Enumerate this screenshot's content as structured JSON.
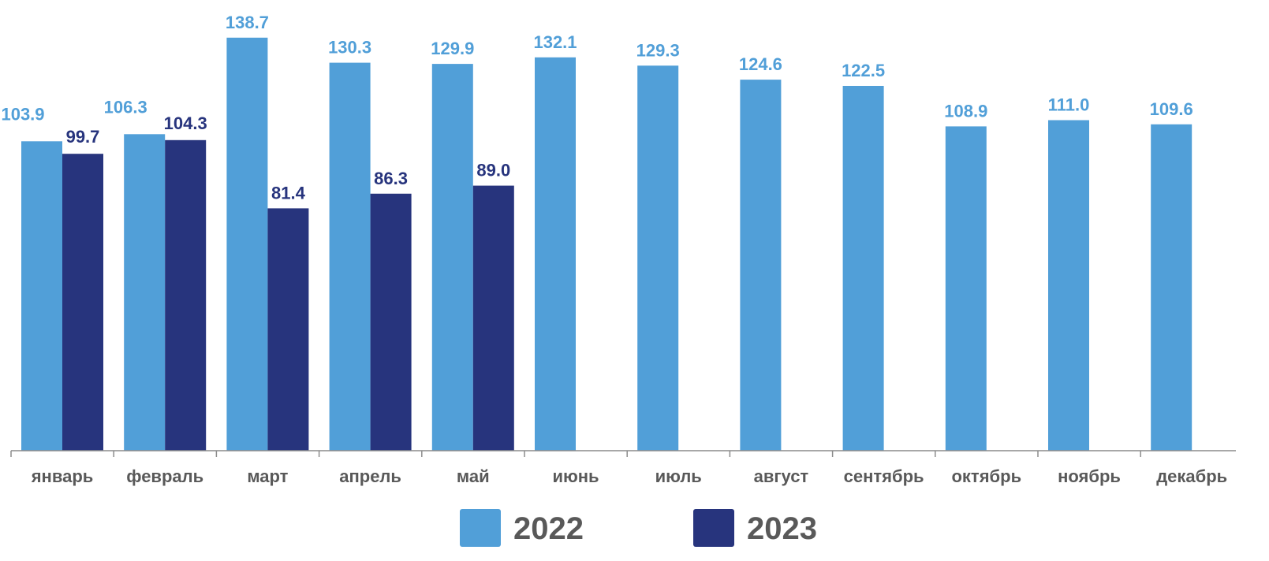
{
  "chart_data": {
    "type": "bar",
    "categories": [
      "январь",
      "февраль",
      "март",
      "апрель",
      "май",
      "июнь",
      "июль",
      "август",
      "сентябрь",
      "октябрь",
      "ноябрь",
      "декабрь"
    ],
    "series": [
      {
        "name": "2022",
        "color": "#519fd8",
        "label_color": "#519fd8",
        "values": [
          103.9,
          106.3,
          138.7,
          130.3,
          129.9,
          132.1,
          129.3,
          124.6,
          122.5,
          108.9,
          111.0,
          109.6
        ],
        "labels": [
          "103.9",
          "106.3",
          "138.7",
          "130.3",
          "129.9",
          "132.1",
          "129.3",
          "124.6",
          "122.5",
          "108.9",
          "111.0",
          "109.6"
        ]
      },
      {
        "name": "2023",
        "color": "#27347d",
        "label_color": "#27347d",
        "values": [
          99.7,
          104.3,
          81.4,
          86.3,
          89.0,
          null,
          null,
          null,
          null,
          null,
          null,
          null
        ],
        "labels": [
          "99.7",
          "104.3",
          "81.4",
          "86.3",
          "89.0",
          "",
          "",
          "",
          "",
          "",
          "",
          ""
        ]
      }
    ],
    "ylim": [
      0,
      145
    ],
    "grid": false,
    "legend_position": "bottom-center"
  }
}
